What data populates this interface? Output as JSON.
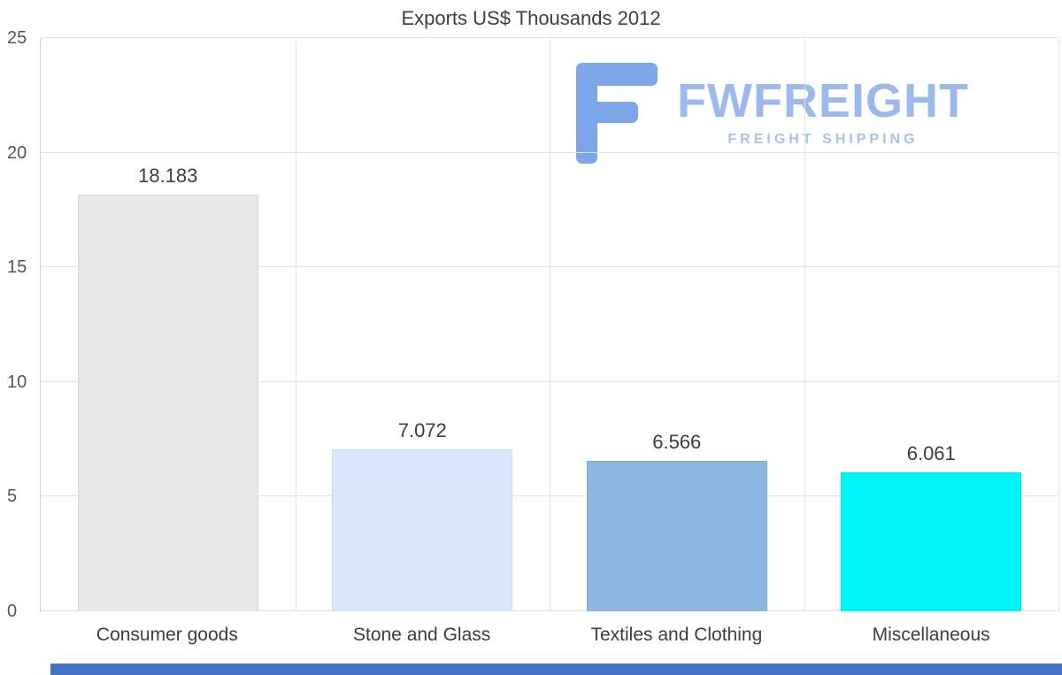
{
  "chart_data": {
    "type": "bar",
    "title": "Exports US$ Thousands 2012",
    "categories": [
      "Consumer goods",
      "Stone and Glass",
      "Textiles and Clothing",
      "Miscellaneous"
    ],
    "values": [
      18.183,
      7.072,
      6.566,
      6.061
    ],
    "value_labels": [
      "18.183",
      "7.072",
      "6.566",
      "6.061"
    ],
    "bar_colors": [
      "#e7e7e7",
      "#d9e7fa",
      "#8db6e2",
      "#00f6f6"
    ],
    "bar_border_colors": [
      "#dadada",
      "#c6dbf5",
      "#7aa9d8",
      "#00dede"
    ],
    "xlabel": "",
    "ylabel": "",
    "ylim": [
      0,
      25
    ],
    "yticks": [
      0,
      5,
      10,
      15,
      20,
      25
    ],
    "grid": true,
    "legend": "none"
  },
  "logo": {
    "name": "FWFREIGHT",
    "subtitle": "FREIGHT SHIPPING",
    "glyph_color": "#7da6e9",
    "name_color": "#9db9ec",
    "subtitle_color": "#a9c0ee"
  },
  "scrollbar": {
    "color": "#4472c4"
  }
}
